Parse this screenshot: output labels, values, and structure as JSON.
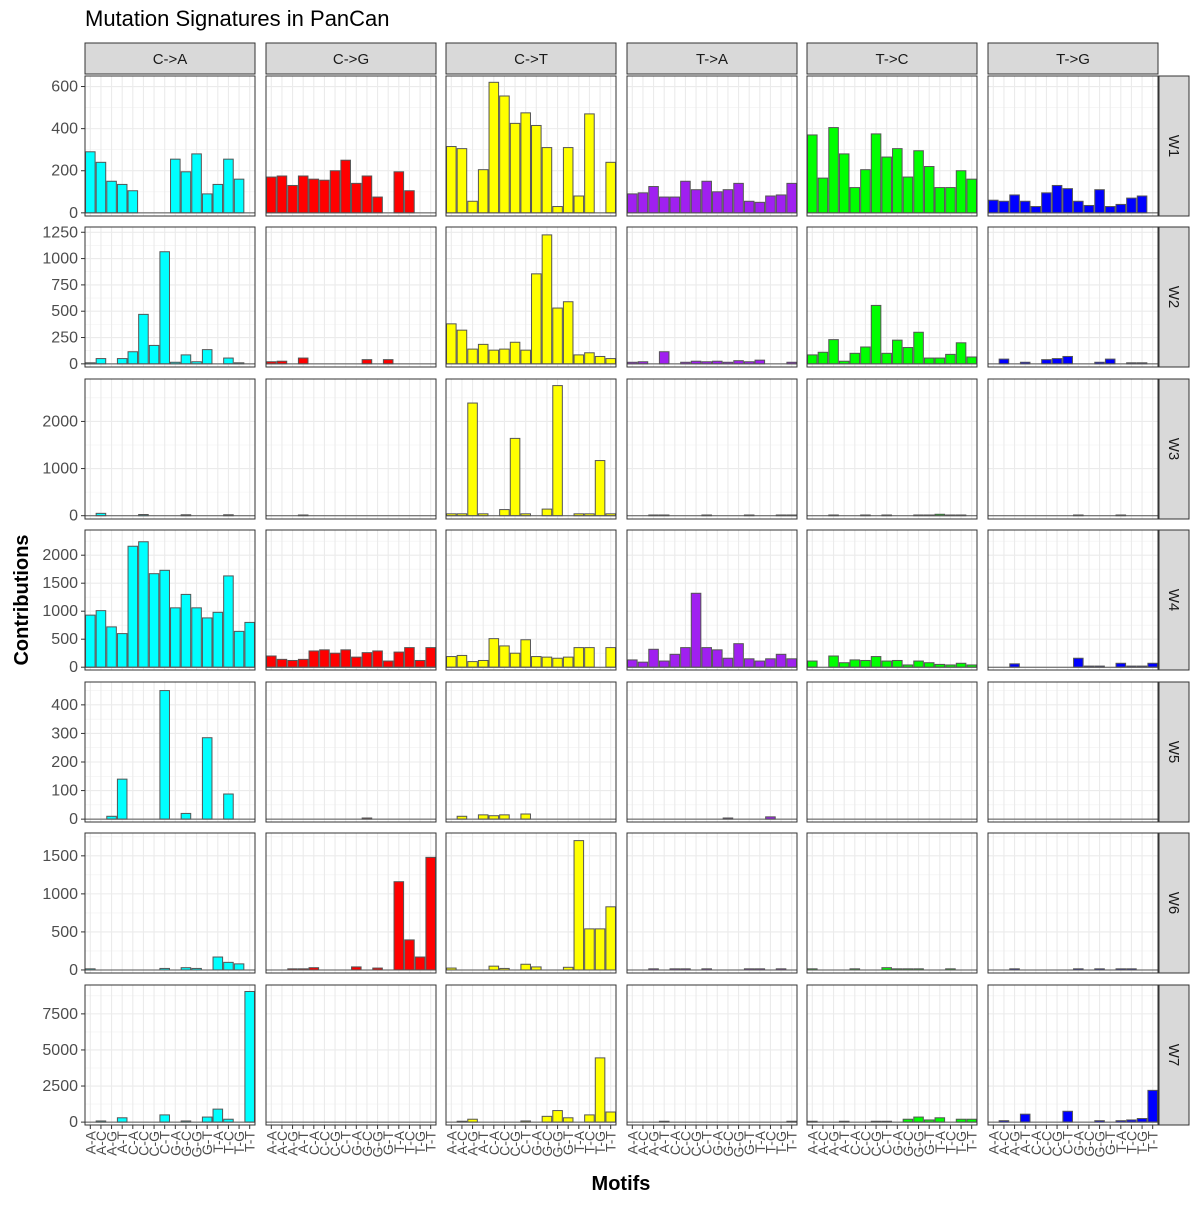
{
  "chart_data": {
    "type": "bar",
    "title": "Mutation Signatures in PanCan",
    "xlabel": "Motifs",
    "ylabel": "Contributions",
    "column_facets": [
      "C->A",
      "C->G",
      "C->T",
      "T->A",
      "T->C",
      "T->G"
    ],
    "row_facets": [
      "W1",
      "W2",
      "W3",
      "W4",
      "W5",
      "W6",
      "W7"
    ],
    "facet_colors": [
      "#00FFFF",
      "#FF0000",
      "#FFFF00",
      "#A020F0",
      "#00FF00",
      "#0000FF"
    ],
    "bar_outline_color": "#555555",
    "categories": [
      "A-A",
      "A-C",
      "A-G",
      "A-T",
      "C-A",
      "C-C",
      "C-G",
      "C-T",
      "G-A",
      "G-C",
      "G-G",
      "G-T",
      "T-A",
      "T-C",
      "T-G",
      "T-T"
    ],
    "x_tick_labels": [
      "A-A",
      "A-C",
      "A-G",
      "A-T",
      "C-A",
      "C-C",
      "C-G",
      "C-T",
      "G-A",
      "G-C",
      "G-G",
      "G-T",
      "T-A",
      "T-C",
      "T-G",
      "T-T"
    ],
    "grid": true,
    "legend": "none",
    "rows": [
      {
        "name": "W1",
        "ylim": [
          -15,
          650
        ],
        "yticks": [
          0,
          200,
          400,
          600
        ],
        "ytick_labels": [
          "0",
          "200",
          "400",
          "600"
        ],
        "panels": [
          [
            290,
            240,
            150,
            135,
            105,
            0,
            0,
            0,
            255,
            195,
            280,
            90,
            135,
            255,
            160,
            0
          ],
          [
            170,
            175,
            130,
            175,
            160,
            155,
            200,
            250,
            140,
            175,
            75,
            0,
            195,
            105,
            0,
            0
          ],
          [
            315,
            305,
            55,
            205,
            620,
            555,
            425,
            475,
            415,
            310,
            30,
            310,
            80,
            470,
            0,
            240
          ],
          [
            90,
            95,
            125,
            75,
            75,
            150,
            110,
            150,
            100,
            110,
            140,
            55,
            50,
            80,
            85,
            140
          ],
          [
            370,
            165,
            405,
            280,
            120,
            205,
            375,
            265,
            305,
            170,
            295,
            220,
            120,
            120,
            200,
            160
          ],
          [
            60,
            55,
            85,
            55,
            30,
            95,
            130,
            115,
            55,
            35,
            110,
            30,
            40,
            70,
            80,
            0
          ]
        ]
      },
      {
        "name": "W2",
        "ylim": [
          -30,
          1300
        ],
        "yticks": [
          0,
          250,
          500,
          750,
          1000,
          1250
        ],
        "ytick_labels": [
          "0",
          "250",
          "500",
          "750",
          "1000",
          "1250"
        ],
        "panels": [
          [
            10,
            50,
            0,
            50,
            115,
            470,
            175,
            1065,
            15,
            85,
            20,
            135,
            0,
            55,
            10,
            0
          ],
          [
            20,
            25,
            0,
            55,
            0,
            0,
            0,
            0,
            0,
            40,
            0,
            40,
            0,
            0,
            0,
            0
          ],
          [
            380,
            320,
            140,
            185,
            130,
            140,
            205,
            130,
            855,
            1225,
            530,
            590,
            85,
            105,
            70,
            50
          ],
          [
            15,
            20,
            0,
            115,
            0,
            15,
            25,
            20,
            25,
            15,
            30,
            20,
            35,
            0,
            0,
            15
          ],
          [
            85,
            110,
            230,
            25,
            100,
            160,
            555,
            100,
            225,
            155,
            300,
            55,
            55,
            90,
            200,
            65
          ],
          [
            0,
            45,
            0,
            15,
            0,
            40,
            50,
            70,
            0,
            0,
            15,
            45,
            0,
            10,
            10,
            0
          ]
        ]
      },
      {
        "name": "W3",
        "ylim": [
          -70,
          2900
        ],
        "yticks": [
          0,
          1000,
          2000
        ],
        "ytick_labels": [
          "0",
          "1000",
          "2000"
        ],
        "panels": [
          [
            0,
            50,
            0,
            0,
            0,
            25,
            0,
            0,
            0,
            20,
            0,
            0,
            0,
            20,
            0,
            0
          ],
          [
            0,
            0,
            0,
            15,
            0,
            0,
            0,
            0,
            0,
            0,
            0,
            0,
            0,
            0,
            0,
            0
          ],
          [
            40,
            40,
            2390,
            40,
            0,
            130,
            1640,
            40,
            0,
            140,
            2760,
            0,
            40,
            40,
            1170,
            40
          ],
          [
            0,
            0,
            15,
            15,
            0,
            0,
            0,
            15,
            0,
            0,
            0,
            15,
            0,
            0,
            15,
            15
          ],
          [
            0,
            0,
            15,
            0,
            0,
            15,
            0,
            15,
            0,
            0,
            15,
            15,
            30,
            15,
            15,
            0
          ],
          [
            0,
            0,
            0,
            0,
            0,
            0,
            0,
            0,
            15,
            0,
            0,
            0,
            15,
            0,
            0,
            0
          ]
        ]
      },
      {
        "name": "W4",
        "ylim": [
          -50,
          2450
        ],
        "yticks": [
          0,
          500,
          1000,
          1500,
          2000
        ],
        "ytick_labels": [
          "0",
          "500",
          "1000",
          "1500",
          "2000"
        ],
        "panels": [
          [
            930,
            1010,
            720,
            600,
            2160,
            2240,
            1670,
            1730,
            1060,
            1300,
            1060,
            880,
            980,
            1630,
            640,
            800
          ],
          [
            200,
            140,
            120,
            140,
            290,
            310,
            250,
            310,
            180,
            260,
            290,
            110,
            270,
            350,
            120,
            350
          ],
          [
            190,
            210,
            100,
            120,
            510,
            380,
            250,
            490,
            190,
            180,
            160,
            180,
            350,
            350,
            0,
            350
          ],
          [
            130,
            90,
            320,
            110,
            230,
            350,
            1320,
            350,
            310,
            160,
            420,
            150,
            110,
            150,
            230,
            150
          ],
          [
            110,
            0,
            200,
            80,
            130,
            120,
            190,
            110,
            120,
            40,
            110,
            80,
            50,
            40,
            70,
            40
          ],
          [
            0,
            0,
            60,
            0,
            0,
            0,
            0,
            0,
            160,
            20,
            20,
            0,
            70,
            20,
            20,
            70
          ]
        ]
      },
      {
        "name": "W5",
        "ylim": [
          -10,
          480
        ],
        "yticks": [
          0,
          100,
          200,
          300,
          400
        ],
        "ytick_labels": [
          "0",
          "100",
          "200",
          "300",
          "400"
        ],
        "panels": [
          [
            0,
            0,
            10,
            140,
            0,
            0,
            0,
            450,
            0,
            20,
            0,
            285,
            0,
            88,
            0,
            0
          ],
          [
            0,
            0,
            0,
            0,
            0,
            0,
            0,
            0,
            0,
            4,
            0,
            0,
            0,
            0,
            0,
            0
          ],
          [
            0,
            10,
            0,
            15,
            12,
            15,
            0,
            18,
            0,
            0,
            0,
            0,
            0,
            0,
            0,
            0
          ],
          [
            0,
            0,
            0,
            0,
            0,
            0,
            0,
            0,
            0,
            4,
            0,
            0,
            0,
            8,
            0,
            0
          ],
          [
            0,
            0,
            0,
            0,
            0,
            0,
            0,
            0,
            0,
            0,
            0,
            0,
            0,
            0,
            0,
            0
          ],
          [
            0,
            0,
            0,
            0,
            0,
            0,
            0,
            0,
            0,
            0,
            0,
            0,
            0,
            0,
            0,
            0
          ]
        ]
      },
      {
        "name": "W6",
        "ylim": [
          -40,
          1800
        ],
        "yticks": [
          0,
          500,
          1000,
          1500
        ],
        "ytick_labels": [
          "0",
          "500",
          "1000",
          "1500"
        ],
        "panels": [
          [
            15,
            0,
            0,
            0,
            0,
            0,
            0,
            20,
            0,
            30,
            20,
            0,
            170,
            100,
            80,
            0
          ],
          [
            0,
            0,
            15,
            15,
            30,
            0,
            0,
            0,
            40,
            0,
            25,
            0,
            1160,
            395,
            170,
            1480
          ],
          [
            25,
            0,
            0,
            0,
            50,
            20,
            0,
            75,
            40,
            0,
            0,
            35,
            1700,
            540,
            540,
            830
          ],
          [
            0,
            0,
            15,
            0,
            15,
            15,
            0,
            15,
            0,
            0,
            0,
            15,
            15,
            0,
            15,
            0
          ],
          [
            15,
            0,
            0,
            0,
            15,
            0,
            0,
            30,
            15,
            15,
            15,
            0,
            0,
            15,
            0,
            0
          ],
          [
            0,
            0,
            15,
            0,
            0,
            0,
            0,
            0,
            15,
            0,
            15,
            0,
            15,
            15,
            0,
            0
          ]
        ]
      },
      {
        "name": "W7",
        "ylim": [
          -200,
          9500
        ],
        "yticks": [
          0,
          2500,
          5000,
          7500
        ],
        "ytick_labels": [
          "0",
          "2500",
          "5000",
          "7500"
        ],
        "panels": [
          [
            0,
            80,
            0,
            300,
            0,
            0,
            0,
            500,
            0,
            80,
            0,
            350,
            900,
            200,
            0,
            9050
          ],
          [
            0,
            0,
            0,
            0,
            0,
            0,
            0,
            0,
            0,
            0,
            0,
            0,
            0,
            0,
            0,
            0
          ],
          [
            0,
            60,
            200,
            0,
            0,
            0,
            0,
            80,
            0,
            400,
            800,
            300,
            0,
            500,
            4450,
            700
          ],
          [
            0,
            0,
            0,
            60,
            0,
            0,
            0,
            0,
            0,
            0,
            0,
            0,
            0,
            0,
            0,
            60
          ],
          [
            60,
            0,
            0,
            60,
            0,
            0,
            60,
            60,
            0,
            200,
            350,
            150,
            300,
            0,
            200,
            200
          ],
          [
            0,
            100,
            0,
            550,
            0,
            0,
            0,
            750,
            0,
            0,
            100,
            0,
            100,
            150,
            250,
            2200
          ]
        ]
      }
    ]
  }
}
